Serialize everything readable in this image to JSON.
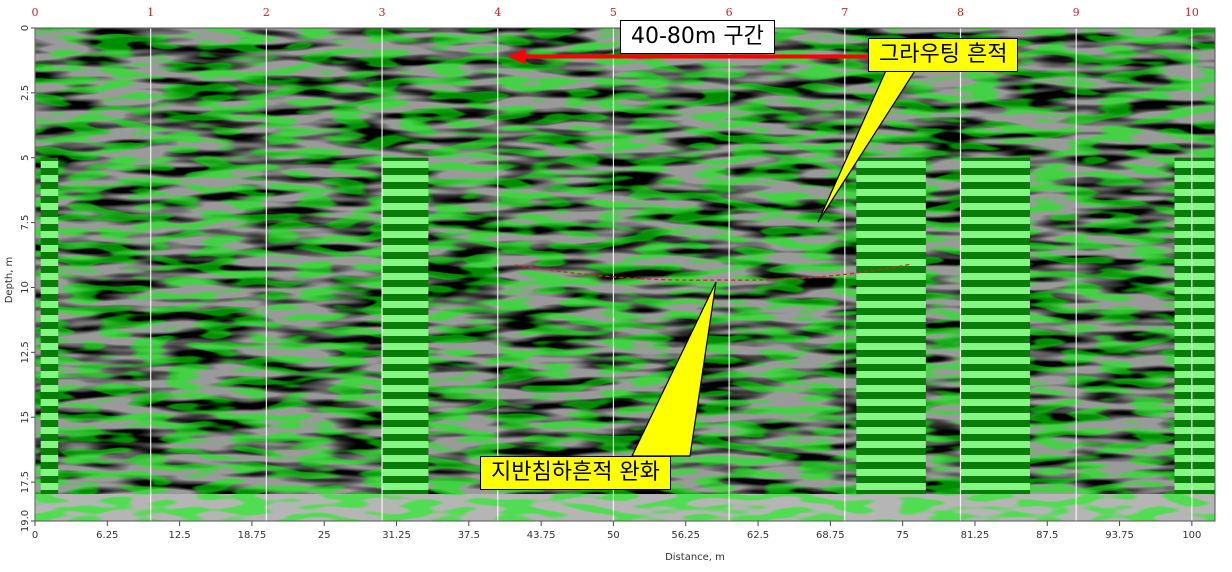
{
  "chart_data": {
    "type": "heatmap",
    "title": "",
    "xlabel": "Distance, m",
    "ylabel": "Depth, m",
    "xlim": [
      0,
      102
    ],
    "ylim": [
      0,
      19
    ],
    "x_ticks": [
      "0",
      "6.25",
      "12.5",
      "18.75",
      "25",
      "31.25",
      "37.5",
      "43.75",
      "50",
      "56.25",
      "62.5",
      "68.75",
      "75",
      "81.25",
      "87.5",
      "93.75",
      "100"
    ],
    "x_tick_values": [
      0,
      6.25,
      12.5,
      18.75,
      25,
      31.25,
      37.5,
      43.75,
      50,
      56.25,
      62.5,
      68.75,
      75,
      81.25,
      87.5,
      93.75,
      100
    ],
    "y_ticks": [
      "0",
      "2.5",
      "5",
      "7.5",
      "10",
      "12.5",
      "15",
      "17.5",
      "19.0"
    ],
    "y_tick_values": [
      0,
      2.5,
      5,
      7.5,
      10,
      12.5,
      15,
      17.5,
      19.0
    ],
    "markers": [
      "0",
      "1",
      "2",
      "3",
      "4",
      "5",
      "6",
      "7",
      "8",
      "9",
      "10"
    ],
    "marker_positions": [
      0,
      10,
      20,
      30,
      40,
      50,
      60,
      70,
      80,
      90,
      100
    ],
    "anomaly_zones": [
      [
        0.5,
        2
      ],
      [
        30,
        34
      ],
      [
        71,
        77
      ],
      [
        80,
        86
      ],
      [
        98.5,
        102
      ]
    ],
    "annotations": {
      "section_label": "40-80m 구간",
      "grouting_label": "그라우팅 흔적",
      "subsidence_label": "지반침하흔적 완화"
    },
    "colors": {
      "anomaly": "#00ff00",
      "arrow": "#ff0000",
      "callout_fill": "#ffff00",
      "marker_text": "#cc2222"
    }
  }
}
